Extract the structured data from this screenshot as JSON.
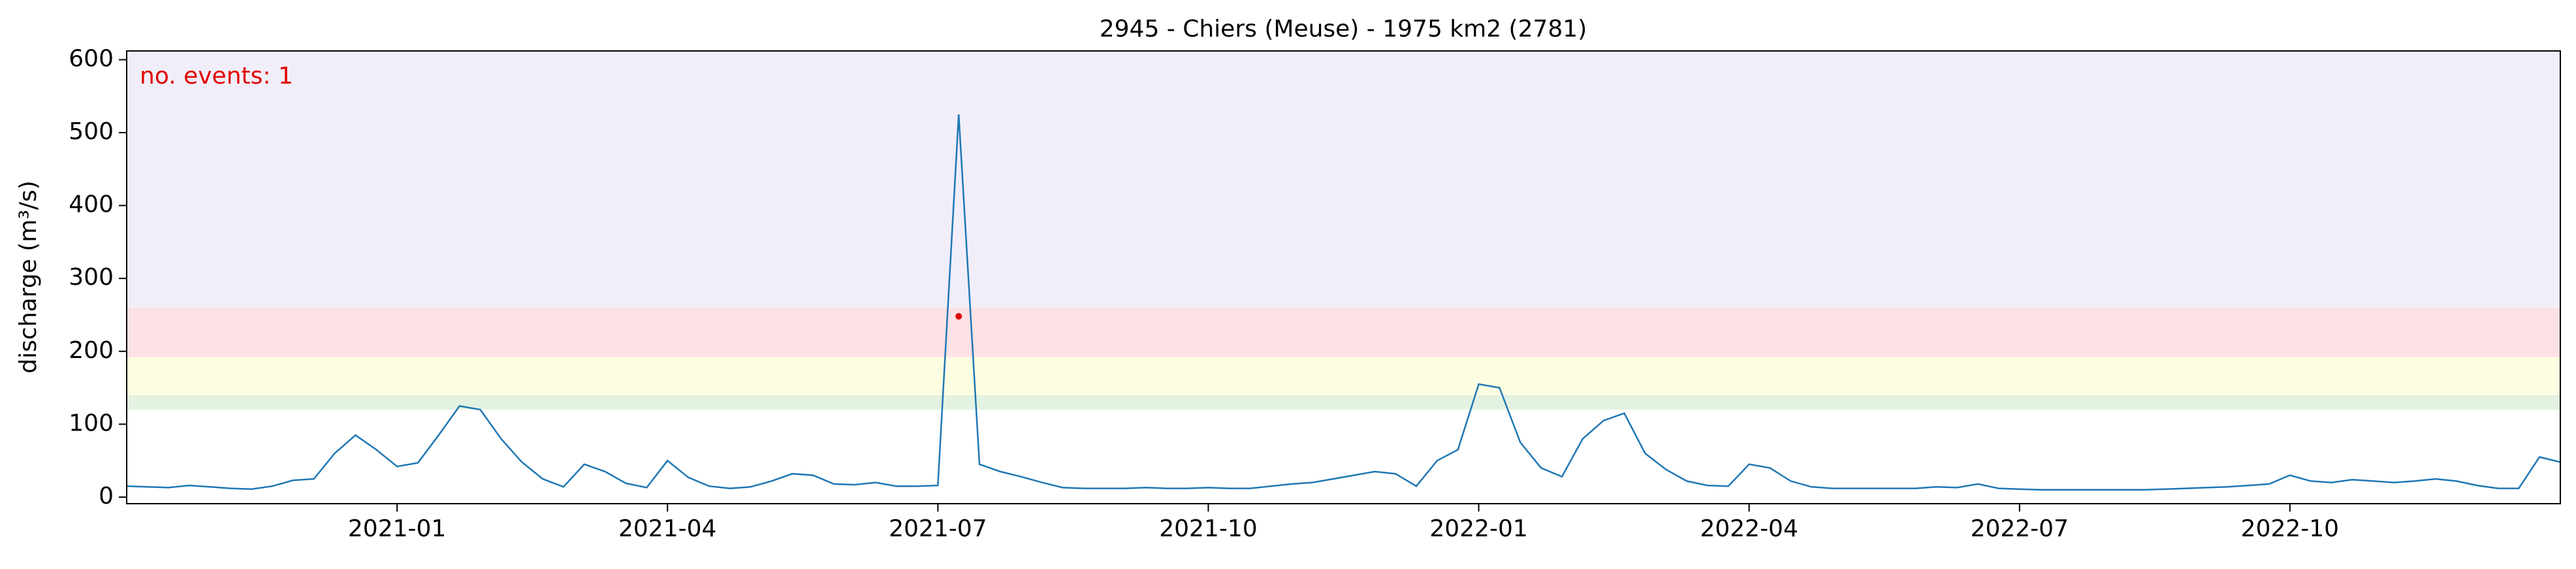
{
  "chart_data": {
    "type": "line",
    "title": "2945 - Chiers (Meuse) - 1975 km2 (2781)",
    "y_label": "discharge (m³/s)",
    "annotation": "no. events: 1",
    "annotation_color": "#e00000",
    "xlim": [
      "2020-10",
      "2023-01"
    ],
    "xticks": [
      "2021-01",
      "2021-04",
      "2021-07",
      "2021-10",
      "2022-01",
      "2022-04",
      "2022-07",
      "2022-10"
    ],
    "ylim": [
      -9,
      612
    ],
    "yticks": [
      0,
      100,
      200,
      300,
      400,
      500,
      600
    ],
    "bands": [
      {
        "from": 120,
        "to": 140,
        "color": "#e3f2e1"
      },
      {
        "from": 140,
        "to": 192,
        "color": "#fdfde1"
      },
      {
        "from": 192,
        "to": 260,
        "color": "#fde1e4"
      },
      {
        "from": 260,
        "to": 612,
        "color": "#f1eef9"
      }
    ],
    "series": [
      {
        "color": "#1f77b4",
        "values": [
          15,
          14,
          13,
          16,
          14,
          12,
          11,
          15,
          23,
          25,
          60,
          85,
          65,
          42,
          47,
          85,
          125,
          120,
          80,
          48,
          25,
          14,
          45,
          35,
          19,
          13,
          50,
          27,
          15,
          12,
          14,
          22,
          32,
          30,
          18,
          17,
          20,
          15,
          15,
          16,
          525,
          45,
          35,
          28,
          20,
          13,
          12,
          12,
          12,
          13,
          12,
          12,
          13,
          12,
          12,
          15,
          18,
          20,
          25,
          30,
          35,
          32,
          15,
          50,
          65,
          155,
          150,
          75,
          40,
          28,
          80,
          105,
          115,
          60,
          38,
          22,
          16,
          15,
          45,
          40,
          22,
          14,
          12,
          12,
          12,
          12,
          12,
          14,
          13,
          18,
          12,
          11,
          10,
          10,
          10,
          10,
          10,
          10,
          11,
          12,
          13,
          14,
          16,
          18,
          30,
          22,
          20,
          24,
          22,
          20,
          22,
          25,
          22,
          16,
          12,
          12,
          55,
          48
        ]
      }
    ],
    "events": {
      "color": "#e00000",
      "values": [
        248
      ]
    }
  }
}
